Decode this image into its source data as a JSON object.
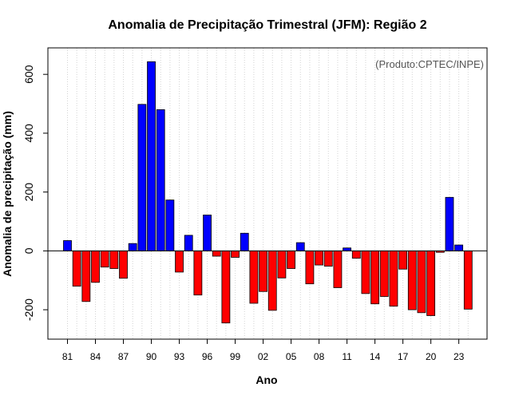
{
  "chart_data": {
    "type": "bar",
    "title": "Anomalia de Precipitação Trimestral (JFM): Região 2",
    "xlabel": "Ano",
    "ylabel": "Anomalia de precipitação (mm)",
    "credit": "(Produto:CPTEC/INPE)",
    "ylim": [
      -300,
      690
    ],
    "yticks": [
      -200,
      0,
      200,
      400,
      600
    ],
    "ytick_labels": [
      "-200",
      "0",
      "200",
      "400",
      "600"
    ],
    "xtick_labels": [
      "81",
      "84",
      "87",
      "90",
      "93",
      "96",
      "99",
      "02",
      "05",
      "08",
      "11",
      "14",
      "17",
      "20",
      "23"
    ],
    "grid": "vertical dotted",
    "categories": [
      "81",
      "82",
      "83",
      "84",
      "85",
      "86",
      "87",
      "88",
      "89",
      "90",
      "91",
      "92",
      "93",
      "94",
      "95",
      "96",
      "97",
      "98",
      "99",
      "00",
      "01",
      "02",
      "03",
      "04",
      "05",
      "06",
      "07",
      "08",
      "09",
      "10",
      "11",
      "12",
      "13",
      "14",
      "15",
      "16",
      "17",
      "18",
      "19",
      "20",
      "21",
      "22",
      "23",
      "24"
    ],
    "values": [
      35,
      -120,
      -172,
      -107,
      -55,
      -60,
      -93,
      25,
      498,
      643,
      480,
      173,
      -72,
      53,
      -150,
      122,
      -18,
      -245,
      -22,
      60,
      -178,
      -138,
      -202,
      -92,
      -60,
      28,
      -112,
      -48,
      -52,
      -125,
      10,
      -25,
      -145,
      -180,
      -155,
      -188,
      -62,
      -200,
      -210,
      -220,
      -5,
      182,
      20,
      -198
    ],
    "colors": {
      "positive": "#0000ff",
      "negative": "#ff0000"
    }
  }
}
